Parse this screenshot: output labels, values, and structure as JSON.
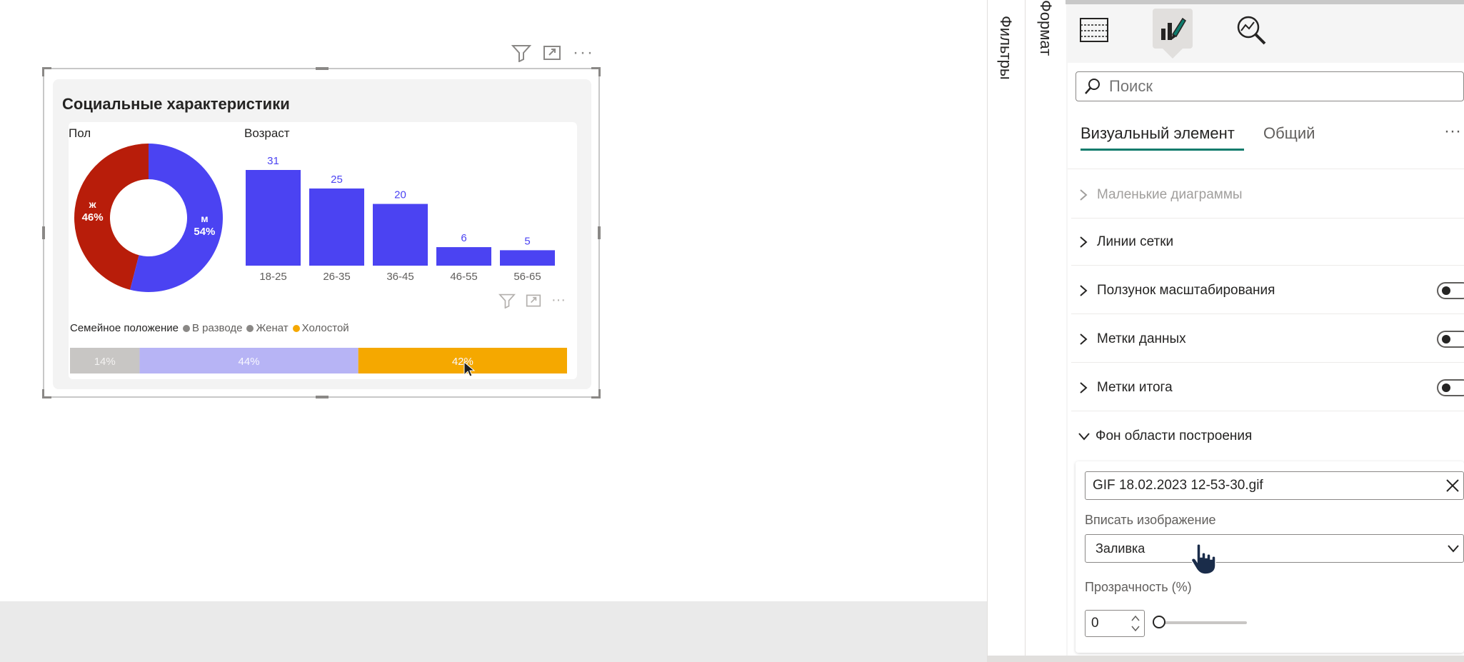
{
  "visual": {
    "title": "Социальные характеристики",
    "gender_label": "Пол",
    "age_label": "Возраст",
    "family_label": "Семейное положение"
  },
  "donut": {
    "slices": [
      {
        "label": "Ж",
        "pct": "46%",
        "value": 46,
        "color": "#b81d0a"
      },
      {
        "label": "М",
        "pct": "54%",
        "value": 54,
        "color": "#4b43f2"
      }
    ]
  },
  "age_chart": {
    "type": "bar",
    "categories": [
      "18-25",
      "26-35",
      "36-45",
      "46-55",
      "56-65"
    ],
    "values": [
      31,
      25,
      20,
      6,
      5
    ],
    "color": "#4b43f2"
  },
  "family_chart": {
    "type": "bar",
    "legend": [
      {
        "name": "В разводе",
        "color": "#8a8886"
      },
      {
        "name": "Женат",
        "color": "#8a8886"
      },
      {
        "name": "Холостой",
        "color": "#f5a800"
      }
    ],
    "segments": [
      {
        "label": "14%",
        "value": 14,
        "color": "#c8c6c4"
      },
      {
        "label": "44%",
        "value": 44,
        "color": "#b7b4f5"
      },
      {
        "label": "42%",
        "value": 42,
        "color": "#f5a800"
      }
    ]
  },
  "chart_data": [
    {
      "type": "pie",
      "title": "Пол",
      "categories": [
        "Ж",
        "М"
      ],
      "values": [
        46,
        54
      ]
    },
    {
      "type": "bar",
      "title": "Возраст",
      "categories": [
        "18-25",
        "26-35",
        "36-45",
        "46-55",
        "56-65"
      ],
      "values": [
        31,
        25,
        20,
        6,
        5
      ]
    },
    {
      "type": "bar",
      "title": "Семейное положение",
      "categories": [
        "В разводе",
        "Женат",
        "Холостой"
      ],
      "values": [
        14,
        44,
        42
      ]
    }
  ],
  "panes": {
    "filters_label": "Фильтры",
    "format_label": "Формат"
  },
  "format": {
    "search_placeholder": "Поиск",
    "tabs": [
      "Визуальный элемент",
      "Общий"
    ],
    "more": "···",
    "sections": [
      {
        "label": "Маленькие диаграммы",
        "toggle": false,
        "disabled": true
      },
      {
        "label": "Линии сетки",
        "toggle": false,
        "disabled": false
      },
      {
        "label": "Ползунок масштабирования",
        "toggle": true,
        "disabled": false
      },
      {
        "label": "Метки данных",
        "toggle": true,
        "disabled": false
      },
      {
        "label": "Метки итога",
        "toggle": true,
        "disabled": false
      }
    ],
    "expanded_section": "Фон области построения",
    "image_file": "GIF 18.02.2023 12-53-30.gif",
    "fit_label": "Вписать изображение",
    "fit_value": "Заливка",
    "transparency_label": "Прозрачность (%)",
    "transparency_value": "0"
  }
}
